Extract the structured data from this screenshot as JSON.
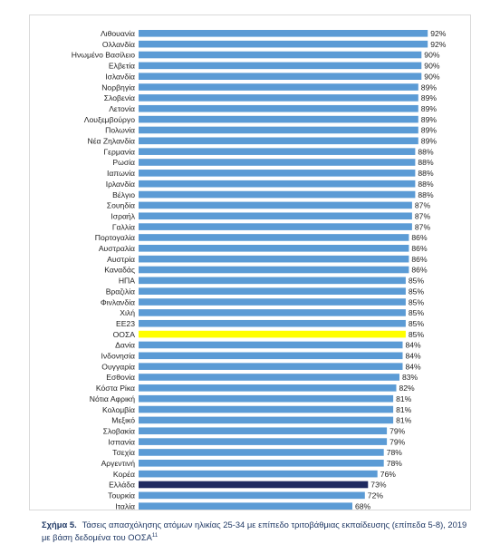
{
  "caption": {
    "figure_label": "Σχήμα 5.",
    "text": "Τάσεις απασχόλησης ατόμων ηλικίας 25-34 με επίπεδο τριτοβάθμιας εκπαίδευσης (επίπεδα 5-8), 2019 με βάση δεδομένα του ΟΟΣΑ",
    "footnote_ref": "11"
  },
  "colors": {
    "default": "#5b9bd5",
    "EE23": "#7030a0",
    "ΟΟΣΑ": "#ffff00",
    "Ελλάδα": "#1f2a60"
  },
  "chart_data": {
    "type": "bar",
    "orientation": "horizontal",
    "title": "",
    "xlabel": "",
    "ylabel": "",
    "xlim": [
      0,
      100
    ],
    "unit": "%",
    "grid": false,
    "legend": false,
    "categories": [
      "Λιθουανία",
      "Ολλανδία",
      "Ηνωμένο Βασίλειο",
      "Ελβετία",
      "Ισλανδία",
      "Νορβηγία",
      "Σλοβενία",
      "Λετονία",
      "Λουξεμβούργο",
      "Πολωνία",
      "Νέα Ζηλανδία",
      "Γερμανία",
      "Ρωσία",
      "Ιαπωνία",
      "Ιρλανδία",
      "Βέλγιο",
      "Σουηδία",
      "Ισραήλ",
      "Γαλλία",
      "Πορτογαλία",
      "Αυστραλία",
      "Αυστρία",
      "Καναδάς",
      "ΗΠΑ",
      "Βραζιλία",
      "Φινλανδία",
      "Χιλή",
      "ΕΕ23",
      "ΟΟΣΑ",
      "Δανία",
      "Ινδονησία",
      "Ουγγαρία",
      "Εσθονία",
      "Κόστα Ρίκα",
      "Νότια Αφρική",
      "Κολομβία",
      "Μεξικό",
      "Σλοβακία",
      "Ισπανία",
      "Τσεχία",
      "Αργεντινή",
      "Κορέα",
      "Ελλάδα",
      "Τουρκία",
      "Ιταλία"
    ],
    "values": [
      92,
      92,
      90,
      90,
      90,
      89,
      89,
      89,
      89,
      89,
      89,
      88,
      88,
      88,
      88,
      88,
      87,
      87,
      87,
      86,
      86,
      86,
      86,
      85,
      85,
      85,
      85,
      85,
      85,
      84,
      84,
      84,
      83,
      82,
      81,
      81,
      81,
      79,
      79,
      78,
      78,
      76,
      73,
      72,
      68
    ],
    "labels": [
      "92%",
      "92%",
      "90%",
      "90%",
      "90%",
      "89%",
      "89%",
      "89%",
      "89%",
      "89%",
      "89%",
      "88%",
      "88%",
      "88%",
      "88%",
      "88%",
      "87%",
      "87%",
      "87%",
      "86%",
      "86%",
      "86%",
      "86%",
      "85%",
      "85%",
      "85%",
      "85%",
      "85%",
      "85%",
      "84%",
      "84%",
      "84%",
      "83%",
      "82%",
      "81%",
      "81%",
      "81%",
      "79%",
      "79%",
      "78%",
      "78%",
      "76%",
      "73%",
      "72%",
      "68%"
    ]
  }
}
